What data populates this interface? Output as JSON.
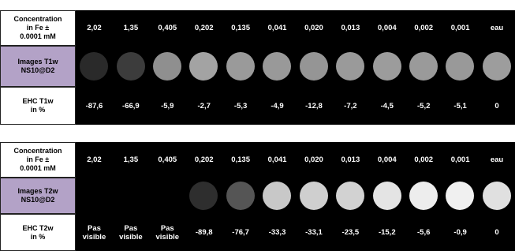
{
  "tables": [
    {
      "header_label": "Concentration\nin Fe ±\n0.0001 mM",
      "concentrations": [
        "2,02",
        "1,35",
        "0,405",
        "0,202",
        "0,135",
        "0,041",
        "0,020",
        "0,013",
        "0,004",
        "0,002",
        "0,001",
        "eau"
      ],
      "image_label": "Images T1w\nNS10@D2",
      "ehc_label": "EHC  T1w\nin %",
      "ehc": [
        "-87,6",
        "-66,9",
        "-5,9",
        "-2,7",
        "-5,3",
        "-4,9",
        "-12,8",
        "-7,2",
        "-4,5",
        "-5,2",
        "-5,1",
        "0"
      ]
    },
    {
      "header_label": "Concentration\nin Fe ±\n0.0001 mM",
      "concentrations": [
        "2,02",
        "1,35",
        "0,405",
        "0,202",
        "0,135",
        "0,041",
        "0,020",
        "0,013",
        "0,004",
        "0,002",
        "0,001",
        "eau"
      ],
      "image_label": "Images T2w\nNS10@D2",
      "ehc_label": "EHC  T2w\nin %",
      "ehc": [
        "Pas\nvisible",
        "Pas\nvisible",
        "Pas\nvisible",
        "-89,8",
        "-76,7",
        "-33,3",
        "-33,1",
        "-23,5",
        "-15,2",
        "-5,6",
        "-0,9",
        "0"
      ]
    }
  ]
}
